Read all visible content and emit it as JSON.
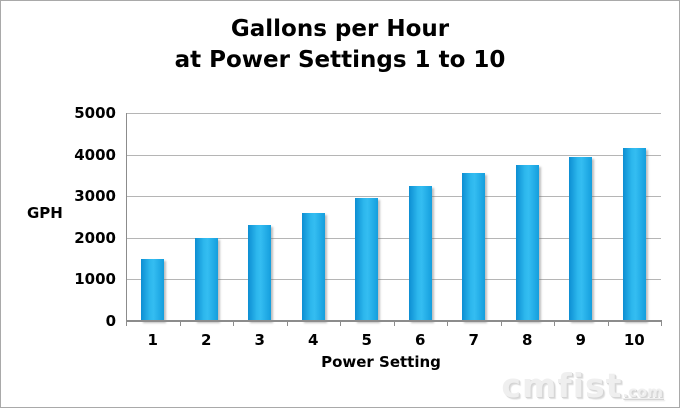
{
  "title": {
    "line1": "Gallons per Hour",
    "line2": "at Power Settings 1 to 10"
  },
  "chart_data": {
    "type": "bar",
    "title": "Gallons per Hour at Power Settings 1 to 10",
    "categories": [
      "1",
      "2",
      "3",
      "4",
      "5",
      "6",
      "7",
      "8",
      "9",
      "10"
    ],
    "values": [
      1500,
      2000,
      2300,
      2600,
      2950,
      3250,
      3550,
      3750,
      3950,
      4150
    ],
    "xlabel": "Power Setting",
    "ylabel": "GPH",
    "ylim": [
      0,
      5000
    ],
    "yticks": [
      0,
      1000,
      2000,
      3000,
      4000,
      5000
    ],
    "grid": true,
    "legend": "none",
    "bar_color": "#1ca7e3",
    "gridline_color": "#b5b5b5",
    "axis_color": "#8c8c8c"
  },
  "watermark": {
    "main": "cmfist",
    "suffix": ".com"
  }
}
